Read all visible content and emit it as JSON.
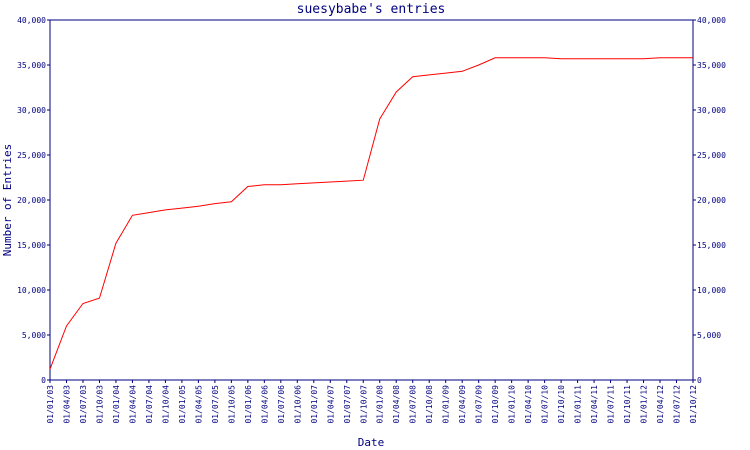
{
  "chart_data": {
    "type": "line",
    "title": "suesybabe's entries",
    "xlabel": "Date",
    "ylabel": "Number of Entries",
    "categories": [
      "01/01/03",
      "01/04/03",
      "01/07/03",
      "01/10/03",
      "01/01/04",
      "01/04/04",
      "01/07/04",
      "01/10/04",
      "01/01/05",
      "01/04/05",
      "01/07/05",
      "01/10/05",
      "01/01/06",
      "01/04/06",
      "01/07/06",
      "01/10/06",
      "01/01/07",
      "01/04/07",
      "01/07/07",
      "01/10/07",
      "01/01/08",
      "01/04/08",
      "01/07/08",
      "01/10/08",
      "01/01/09",
      "01/04/09",
      "01/07/09",
      "01/10/09",
      "01/01/10",
      "01/04/10",
      "01/07/10",
      "01/10/10",
      "01/01/11",
      "01/04/11",
      "01/07/11",
      "01/10/11",
      "01/01/12",
      "01/04/12",
      "01/07/12",
      "01/10/12"
    ],
    "series": [
      {
        "name": "entries",
        "color": "#ff0000",
        "values": [
          1200,
          6000,
          8500,
          9100,
          15200,
          18300,
          18600,
          18900,
          19100,
          19300,
          19600,
          19800,
          21500,
          21700,
          21700,
          21800,
          21900,
          22000,
          22100,
          22200,
          29000,
          32000,
          33700,
          33900,
          34100,
          34300,
          35000,
          35800,
          35800,
          35800,
          35800,
          35700,
          35700,
          35700,
          35700,
          35700,
          35700,
          35800,
          35800,
          35800
        ]
      }
    ],
    "ylim": [
      0,
      40000
    ],
    "yticks": [
      0,
      {
        "value": 5000,
        "label": "5,000"
      },
      {
        "value": 10000,
        "label": "10,000"
      },
      {
        "value": 15000,
        "label": "15,000"
      },
      {
        "value": 20000,
        "label": "20,000"
      },
      {
        "value": 25000,
        "label": "25,000"
      },
      {
        "value": 30000,
        "label": "30,000"
      },
      {
        "value": 35000,
        "label": "35,000"
      },
      {
        "value": 40000,
        "label": "40,000"
      }
    ],
    "axis_color": "#000080"
  }
}
